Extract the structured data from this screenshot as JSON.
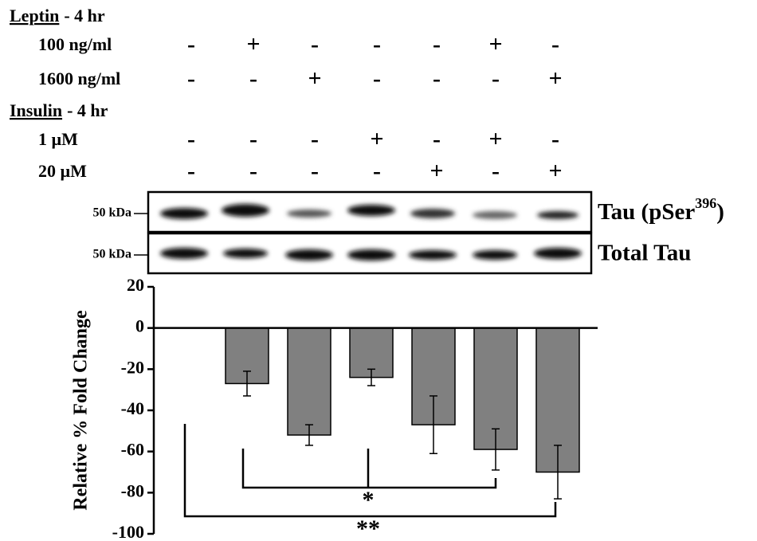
{
  "treatments": [
    {
      "name": "Leptin",
      "duration": "- 4 hr",
      "doses": [
        {
          "label": "100 ng/ml",
          "signs": [
            "-",
            "+",
            "-",
            "-",
            "-",
            "+",
            "-"
          ]
        },
        {
          "label": "1600 ng/ml",
          "signs": [
            "-",
            "-",
            "+",
            "-",
            "-",
            "-",
            "+"
          ]
        }
      ]
    },
    {
      "name": "Insulin",
      "duration": "- 4 hr",
      "doses": [
        {
          "label": "1 µM",
          "signs": [
            "-",
            "-",
            "-",
            "+",
            "-",
            "+",
            "-"
          ]
        },
        {
          "label": "20 µM",
          "signs": [
            "-",
            "-",
            "-",
            "-",
            "+",
            "-",
            "+"
          ]
        }
      ]
    }
  ],
  "blot": {
    "marker": "50 kDa",
    "bands": [
      {
        "label": "Tau (pSer",
        "superscript": "396",
        "closing": ")"
      },
      {
        "label": "Total Tau"
      }
    ]
  },
  "chart_data": {
    "type": "bar",
    "categories": [
      null,
      null,
      null,
      null,
      null,
      null,
      null
    ],
    "values": [
      0,
      -27,
      -52,
      -24,
      -47,
      -59,
      -70
    ],
    "errors": [
      null,
      6,
      5,
      4,
      14,
      10,
      13
    ],
    "color": "#808080",
    "ylabel": "Relative % Fold Change",
    "ylim": [
      -100,
      20
    ],
    "yticks": [
      -100,
      -80,
      -60,
      -40,
      -20,
      0,
      20
    ],
    "annotations": [
      "*",
      "**"
    ]
  }
}
